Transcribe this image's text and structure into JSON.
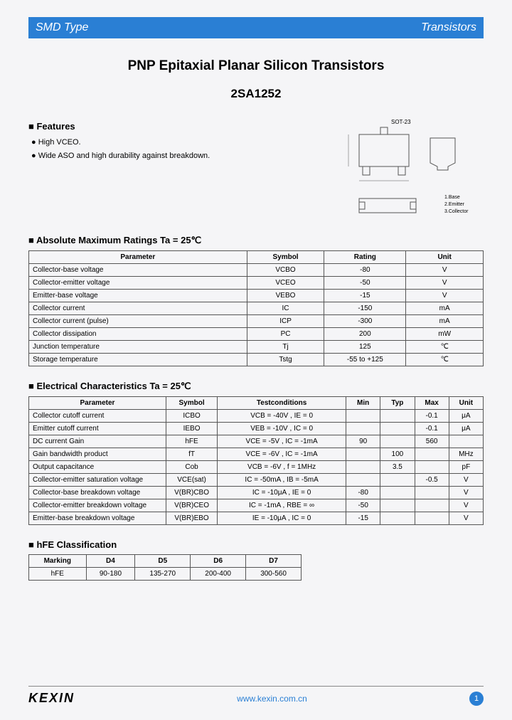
{
  "header": {
    "left": "SMD Type",
    "right": "Transistors"
  },
  "title": "PNP Epitaxial Planar Silicon Transistors",
  "part_number": "2SA1252",
  "package_label": "SOT-23",
  "features": {
    "heading": "Features",
    "items": [
      "High VCEO.",
      "Wide ASO and high durability against breakdown."
    ]
  },
  "abs_max": {
    "heading": "Absolute Maximum Ratings Ta = 25℃",
    "columns": [
      "Parameter",
      "Symbol",
      "Rating",
      "Unit"
    ],
    "rows": [
      [
        "Collector-base voltage",
        "VCBO",
        "-80",
        "V"
      ],
      [
        "Collector-emitter voltage",
        "VCEO",
        "-50",
        "V"
      ],
      [
        "Emitter-base voltage",
        "VEBO",
        "-15",
        "V"
      ],
      [
        "Collector current",
        "IC",
        "-150",
        "mA"
      ],
      [
        "Collector current (pulse)",
        "ICP",
        "-300",
        "mA"
      ],
      [
        "Collector dissipation",
        "PC",
        "200",
        "mW"
      ],
      [
        "Junction temperature",
        "Tj",
        "125",
        "℃"
      ],
      [
        "Storage temperature",
        "Tstg",
        "-55 to +125",
        "℃"
      ]
    ]
  },
  "elec": {
    "heading": "Electrical Characteristics Ta = 25℃",
    "columns": [
      "Parameter",
      "Symbol",
      "Testconditions",
      "Min",
      "Typ",
      "Max",
      "Unit"
    ],
    "rows": [
      [
        "Collector cutoff current",
        "ICBO",
        "VCB = -40V , IE = 0",
        "",
        "",
        "-0.1",
        "μA"
      ],
      [
        "Emitter cutoff current",
        "IEBO",
        "VEB = -10V , IC = 0",
        "",
        "",
        "-0.1",
        "μA"
      ],
      [
        "DC current Gain",
        "hFE",
        "VCE = -5V , IC = -1mA",
        "90",
        "",
        "560",
        ""
      ],
      [
        "Gain bandwidth product",
        "fT",
        "VCE = -6V , IC = -1mA",
        "",
        "100",
        "",
        "MHz"
      ],
      [
        "Output capacitance",
        "Cob",
        "VCB = -6V , f = 1MHz",
        "",
        "3.5",
        "",
        "pF"
      ],
      [
        "Collector-emitter saturation voltage",
        "VCE(sat)",
        "IC = -50mA , IB = -5mA",
        "",
        "",
        "-0.5",
        "V"
      ],
      [
        "Collector-base breakdown voltage",
        "V(BR)CBO",
        "IC = -10μA , IE = 0",
        "-80",
        "",
        "",
        "V"
      ],
      [
        "Collector-emitter breakdown voltage",
        "V(BR)CEO",
        "IC = -1mA , RBE = ∞",
        "-50",
        "",
        "",
        "V"
      ],
      [
        "Emitter-base breakdown voltage",
        "V(BR)EBO",
        "IE = -10μA , IC = 0",
        "-15",
        "",
        "",
        "V"
      ]
    ]
  },
  "hfe": {
    "heading": "hFE Classification",
    "columns": [
      "Marking",
      "D4",
      "D5",
      "D6",
      "D7"
    ],
    "rows": [
      [
        "hFE",
        "90-180",
        "135-270",
        "200-400",
        "300-560"
      ]
    ]
  },
  "footer": {
    "logo": "KEXIN",
    "url": "www.kexin.com.cn",
    "page": "1"
  },
  "colors": {
    "brand": "#2a7fd4",
    "bg": "#f5f5f7",
    "border": "#555555"
  }
}
